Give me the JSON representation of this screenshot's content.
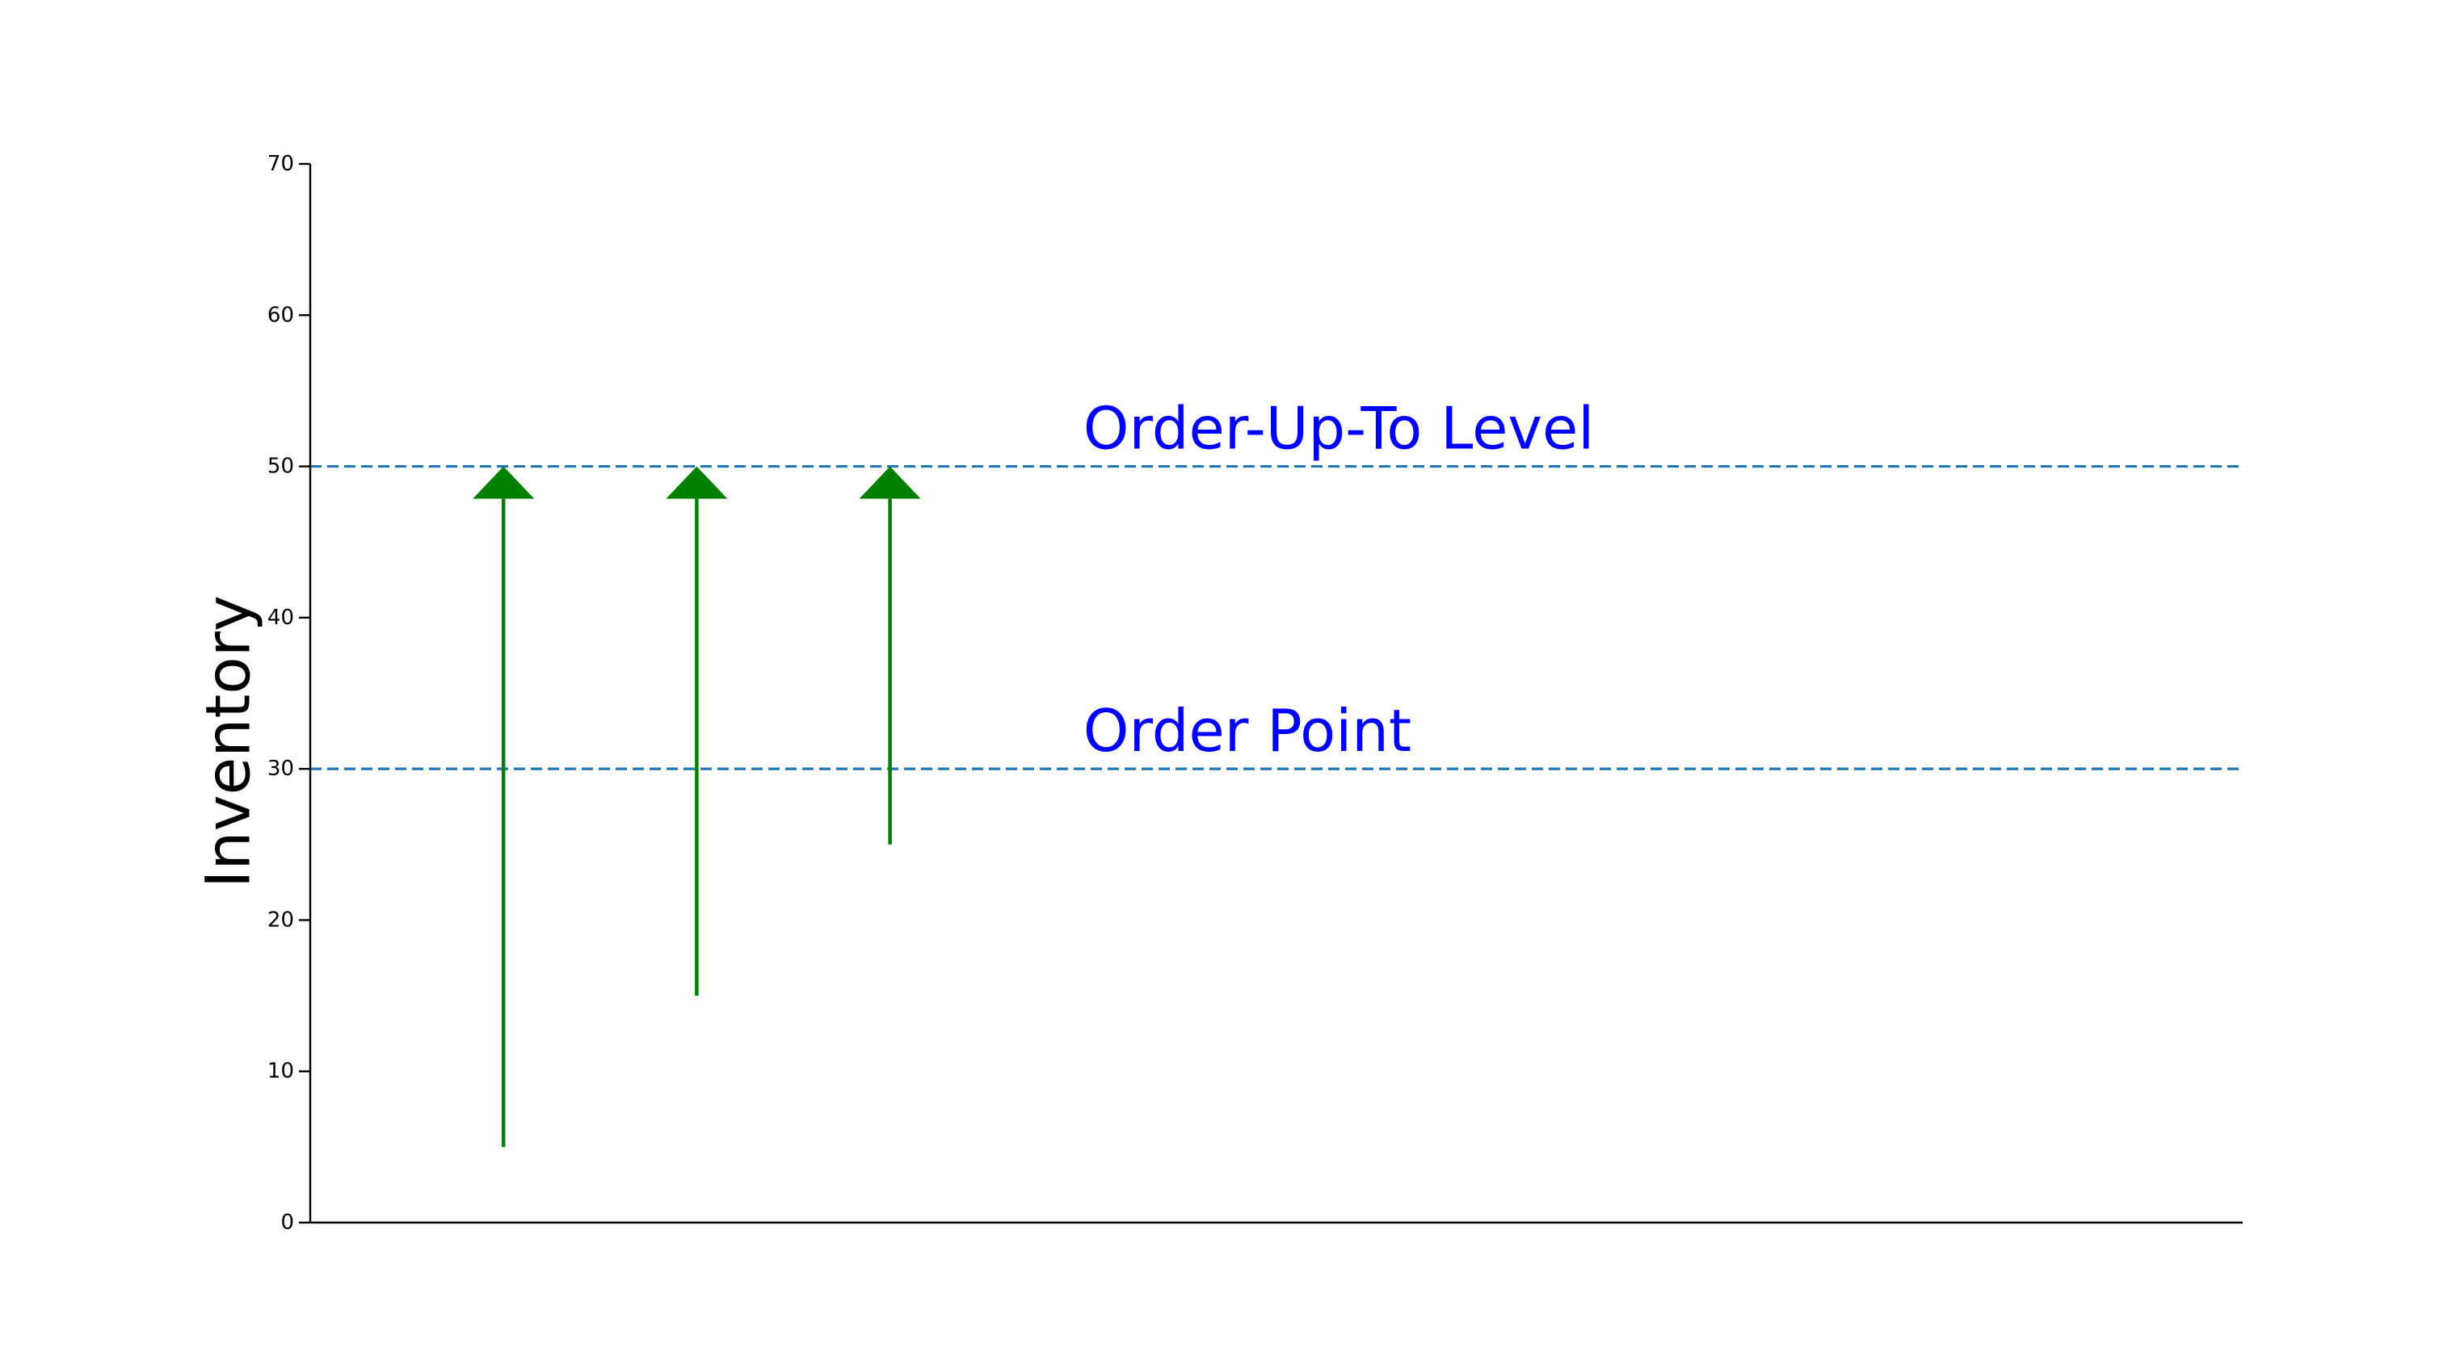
{
  "chart_data": {
    "type": "line",
    "title": "",
    "xlabel": "",
    "ylabel": "Inventory",
    "ylim": [
      0,
      70
    ],
    "yticks": [
      0,
      10,
      20,
      30,
      40,
      50,
      60,
      70
    ],
    "xlim": [
      0,
      10
    ],
    "grid": false,
    "reference_lines": [
      {
        "label": "Order-Up-To Level",
        "y": 50,
        "color": "#1f77b4",
        "style": "dashed",
        "label_color": "#0000ff",
        "label_x": 4
      },
      {
        "label": "Order Point",
        "y": 30,
        "color": "#1f77b4",
        "style": "dashed",
        "label_color": "#0000ff",
        "label_x": 4
      }
    ],
    "arrows": [
      {
        "x": 1,
        "y_start": 5,
        "y_end": 50
      },
      {
        "x": 2,
        "y_start": 15,
        "y_end": 50
      },
      {
        "x": 3,
        "y_start": 25,
        "y_end": 50
      }
    ],
    "arrow_color": "#008000"
  }
}
